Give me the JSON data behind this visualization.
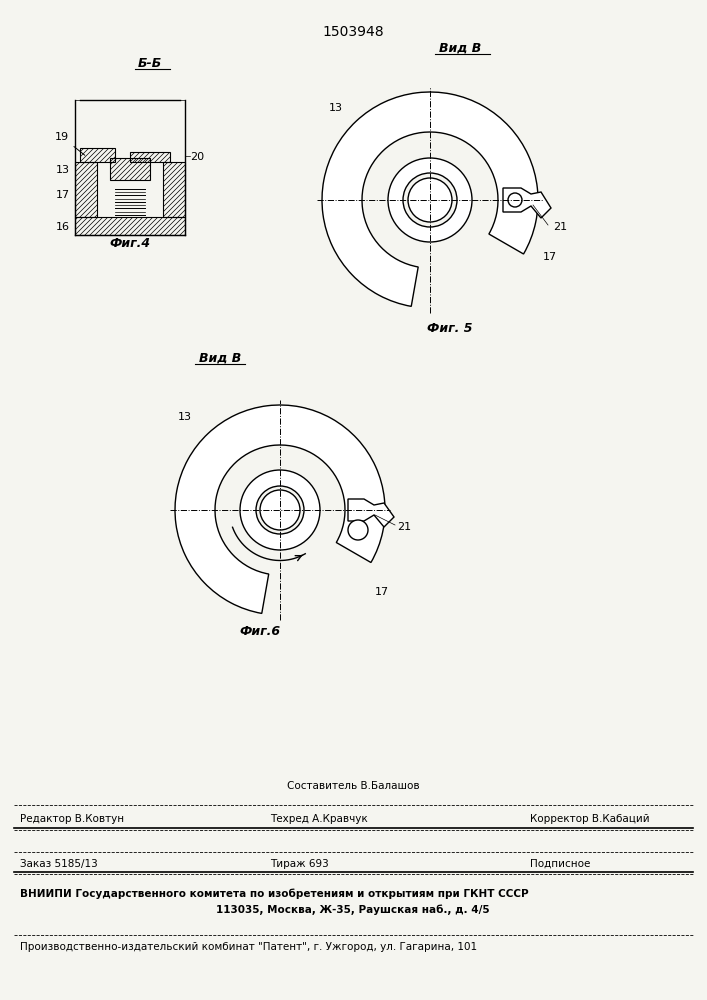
{
  "title": "1503948",
  "fig4_label": "Б-Б",
  "fig4_caption": "Фиг.4",
  "fig5_label": "Вид В",
  "fig5_caption": "Фиг. 5",
  "fig6_label": "Вид В",
  "fig6_caption": "Фиг.6",
  "footer_line1_center": "Составитель В.Балашов",
  "footer_line2_left": "Редактор В.Ковтун",
  "footer_line2_center": "Техред А.Кравчук",
  "footer_line2_right": "Корректор В.Кабаций",
  "footer_line3_left": "Заказ 5185/13",
  "footer_line3_center": "Тираж 693",
  "footer_line3_right": "Подписное",
  "footer_line4": "ВНИИПИ Государственного комитета по изобретениям и открытиям при ГКНТ СССР",
  "footer_line5": "113035, Москва, Ж-35, Раушская наб., д. 4/5",
  "footer_line6": "Производственно-издательский комбинат \"Патент\", г. Ужгород, ул. Гагарина, 101",
  "bg_color": "#f5f5f0",
  "line_color": "#000000"
}
